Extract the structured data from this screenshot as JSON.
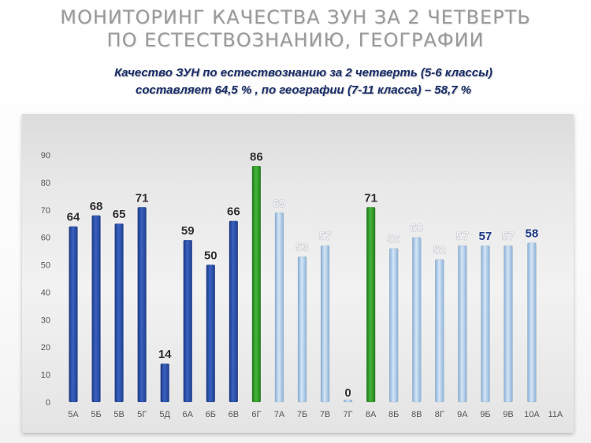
{
  "header": {
    "title_line1": "МОНИТОРИНГ  КАЧЕСТВА ЗУН ЗА 2  ЧЕТВЕРТЬ",
    "title_line2": "ПО  ЕСТЕСТВОЗНАНИЮ, ГЕОГРАФИИ",
    "subtitle_line1": "Качество ЗУН по естествознанию  за 2 четверть  (5-6 классы)",
    "subtitle_line2": "составляет  64,5  % , по географии  (7-11 класса) – 58,7 %"
  },
  "colors": {
    "dark_blue": "#2d4fa6",
    "green": "#35a02b",
    "light_blue": "#a9c9e8",
    "label_dark": "#303030",
    "label_light": "#ffffff",
    "label_blue": "#1f3a8a"
  },
  "chart_data": {
    "type": "bar",
    "title": "",
    "xlabel": "",
    "ylabel": "",
    "ylim": [
      0,
      90
    ],
    "yticks": [
      0,
      10,
      20,
      30,
      40,
      50,
      60,
      70,
      80,
      90
    ],
    "grid": false,
    "legend": "none",
    "categories": [
      "5А",
      "5Б",
      "5В",
      "5Г",
      "5Д",
      "6А",
      "6Б",
      "6В",
      "6Г",
      "7А",
      "7Б",
      "7В",
      "7Г",
      "8А",
      "8Б",
      "8В",
      "8Г",
      "9А",
      "9Б",
      "9В",
      "10А",
      "11А"
    ],
    "values": [
      64,
      68,
      65,
      71,
      14,
      59,
      50,
      66,
      86,
      69,
      53,
      57,
      0,
      71,
      56,
      60,
      52,
      57,
      57,
      57,
      58,
      null
    ],
    "data_labels": [
      "64",
      "68",
      "65",
      "71",
      "14",
      "59",
      "50",
      "66",
      "86",
      "69",
      "53",
      "57",
      "0",
      "71",
      "56",
      "60",
      "52",
      "57",
      "57",
      "57",
      "58",
      ""
    ],
    "bar_colors": [
      "dark_blue",
      "dark_blue",
      "dark_blue",
      "dark_blue",
      "dark_blue",
      "dark_blue",
      "dark_blue",
      "dark_blue",
      "green",
      "light_blue",
      "light_blue",
      "light_blue",
      "light_blue",
      "green",
      "light_blue",
      "light_blue",
      "light_blue",
      "light_blue",
      "light_blue",
      "light_blue",
      "light_blue",
      "light_blue"
    ],
    "label_colors": [
      "label_dark",
      "label_dark",
      "label_dark",
      "label_dark",
      "label_dark",
      "label_dark",
      "label_dark",
      "label_dark",
      "label_dark",
      "label_light",
      "label_light",
      "label_light",
      "label_dark",
      "label_dark",
      "label_light",
      "label_light",
      "label_light",
      "label_light",
      "label_blue",
      "label_light",
      "label_blue",
      "label_light"
    ]
  }
}
